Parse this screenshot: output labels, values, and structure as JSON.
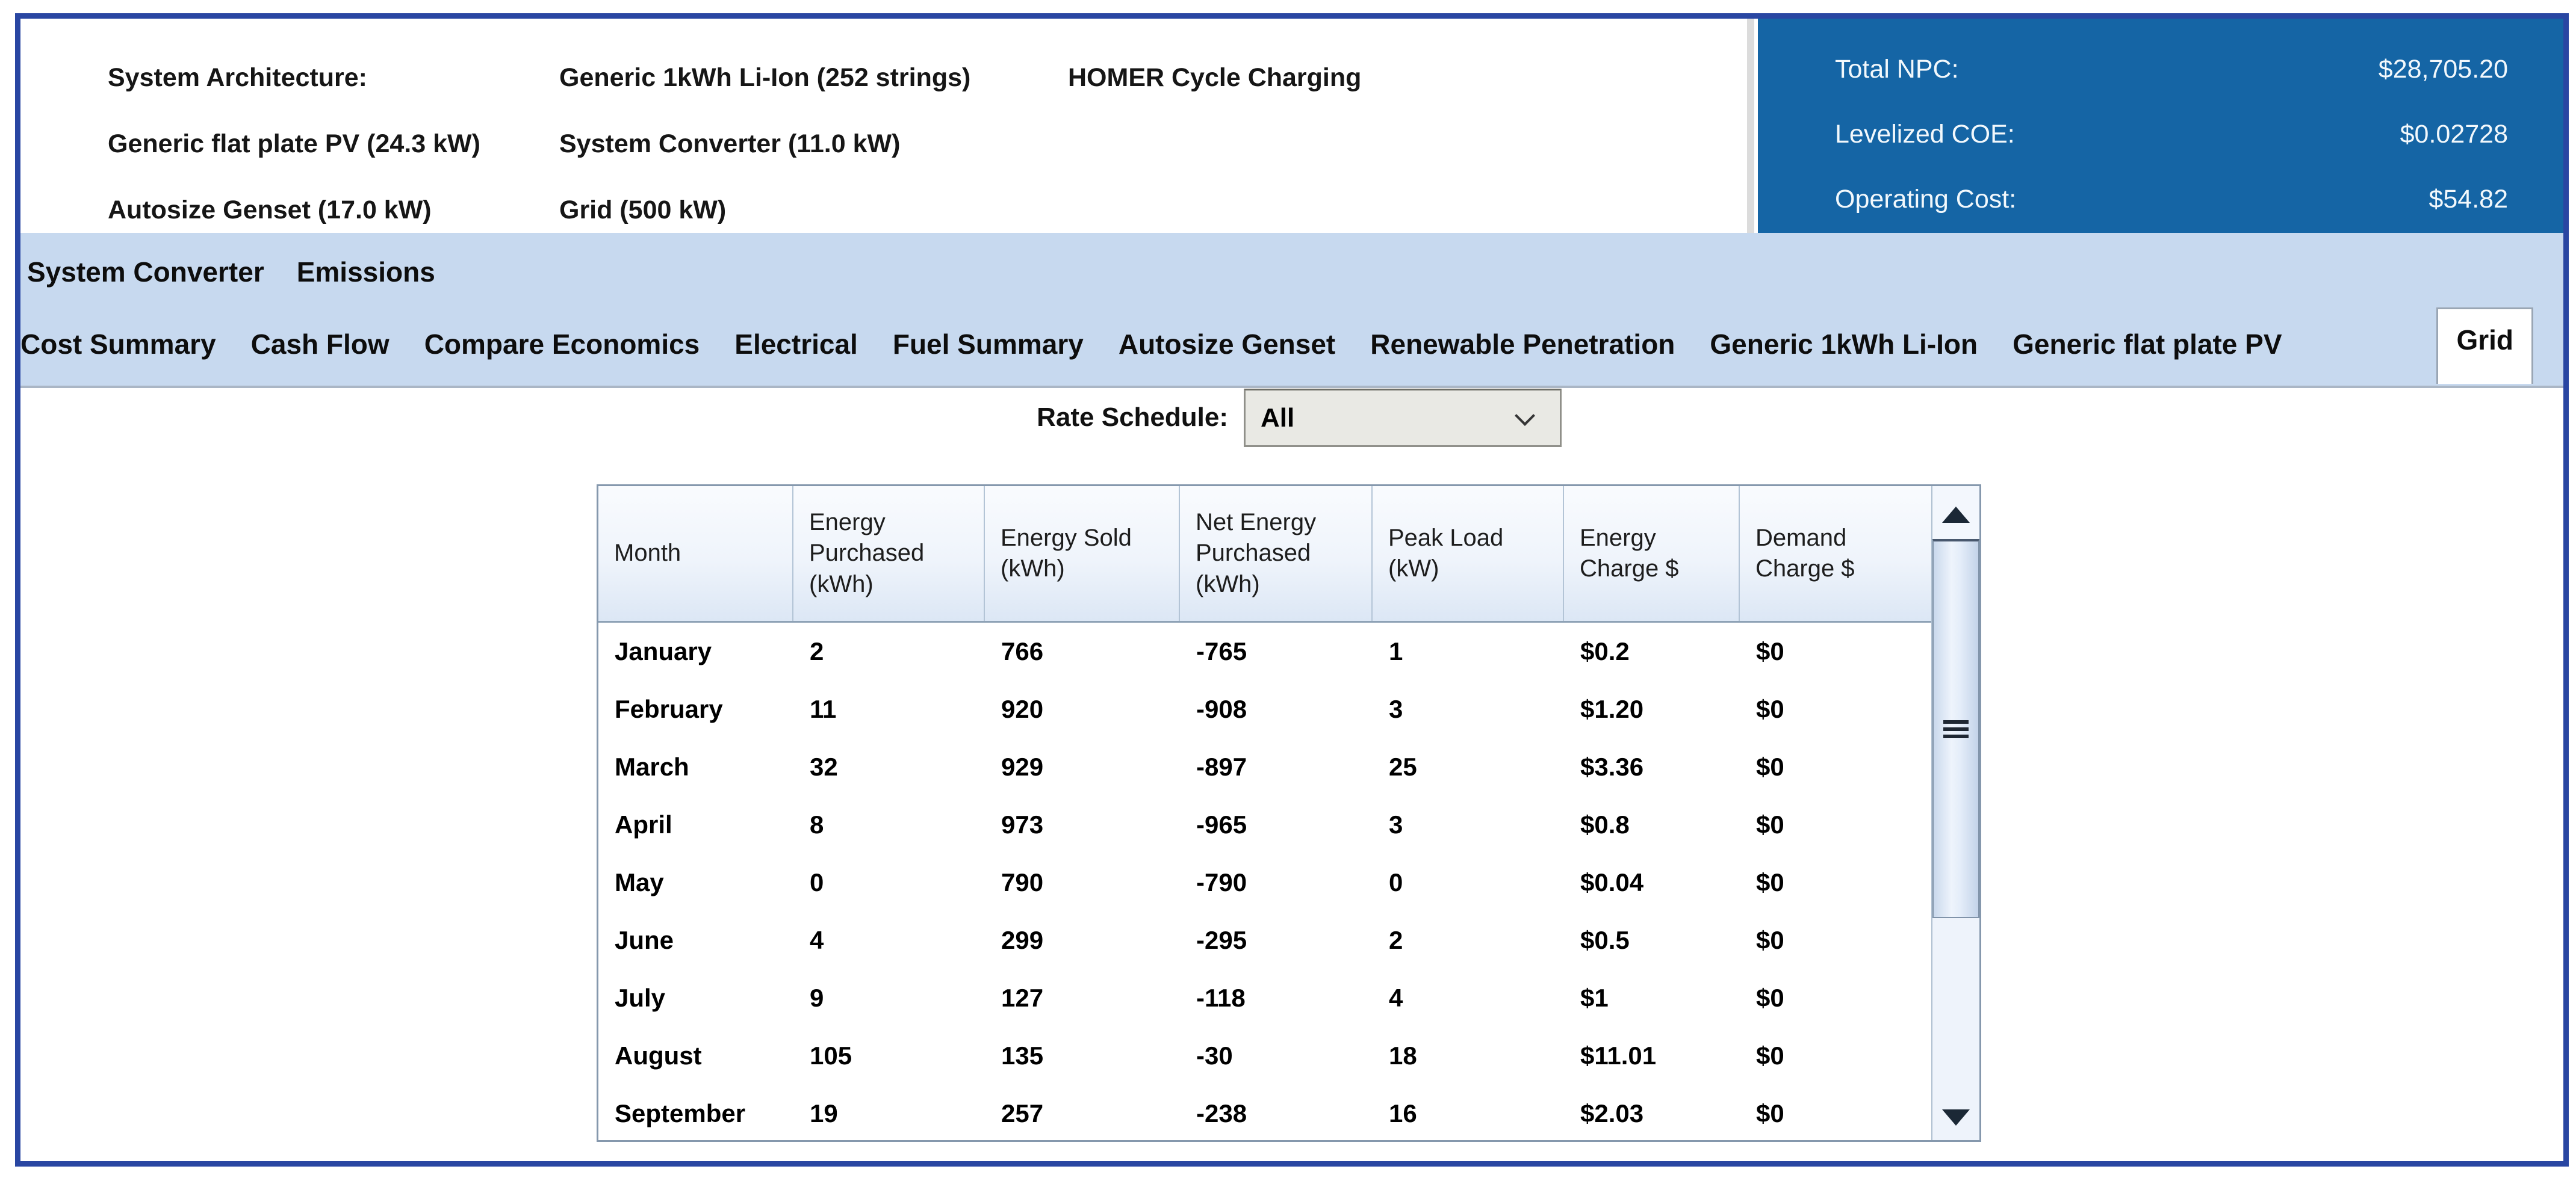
{
  "header": {
    "rows": [
      {
        "col1": "System Architecture:",
        "col2": "Generic 1kWh Li-Ion (252 strings)",
        "col3": "HOMER Cycle Charging"
      },
      {
        "col1": "Generic flat plate PV (24.3 kW)",
        "col2": "System Converter (11.0 kW)",
        "col3": ""
      },
      {
        "col1": "Autosize Genset (17.0 kW)",
        "col2": "Grid (500 kW)",
        "col3": ""
      }
    ]
  },
  "metrics": {
    "items": [
      {
        "label": "Total NPC:",
        "value": "$28,705.20"
      },
      {
        "label": "Levelized COE:",
        "value": "$0.02728"
      },
      {
        "label": "Operating Cost:",
        "value": "$54.82"
      }
    ]
  },
  "tabs": {
    "row1": [
      "System Converter",
      "Emissions"
    ],
    "row2": [
      "Cost Summary",
      "Cash Flow",
      "Compare Economics",
      "Electrical",
      "Fuel Summary",
      "Autosize Genset",
      "Renewable Penetration",
      "Generic 1kWh Li-Ion",
      "Generic flat plate PV",
      "Grid"
    ],
    "active": "Grid"
  },
  "rate_schedule": {
    "label": "Rate Schedule:",
    "selected": "All"
  },
  "table": {
    "columns": [
      "Month",
      "Energy Purchased (kWh)",
      "Energy Sold (kWh)",
      "Net Energy Purchased (kWh)",
      "Peak Load (kW)",
      "Energy Charge $",
      "Demand Charge $"
    ],
    "rows": [
      [
        "January",
        "2",
        "766",
        "-765",
        "1",
        "$0.2",
        "$0"
      ],
      [
        "February",
        "11",
        "920",
        "-908",
        "3",
        "$1.20",
        "$0"
      ],
      [
        "March",
        "32",
        "929",
        "-897",
        "25",
        "$3.36",
        "$0"
      ],
      [
        "April",
        "8",
        "973",
        "-965",
        "3",
        "$0.8",
        "$0"
      ],
      [
        "May",
        "0",
        "790",
        "-790",
        "0",
        "$0.04",
        "$0"
      ],
      [
        "June",
        "4",
        "299",
        "-295",
        "2",
        "$0.5",
        "$0"
      ],
      [
        "July",
        "9",
        "127",
        "-118",
        "4",
        "$1",
        "$0"
      ],
      [
        "August",
        "105",
        "135",
        "-30",
        "18",
        "$11.01",
        "$0"
      ],
      [
        "September",
        "19",
        "257",
        "-238",
        "16",
        "$2.03",
        "$0"
      ]
    ]
  },
  "icons": {
    "dropdown_chevron": "chevron-down-icon",
    "scroll_up": "scroll-up-arrow-icon",
    "scroll_down": "scroll-down-arrow-icon",
    "thumb_grip": "scrollbar-grip-icon"
  },
  "colors": {
    "frame_border": "#2946a2",
    "metrics_panel": "#1565a5",
    "tab_strip": "#c7d9ef",
    "table_border": "#8598ad",
    "header_gradient_bottom": "#dce7f5"
  }
}
